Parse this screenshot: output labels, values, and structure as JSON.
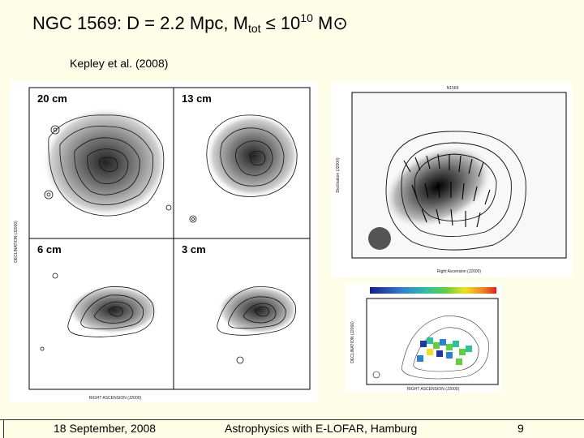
{
  "slide": {
    "title": {
      "prefix": "NGC 1569: D = 2.2 Mpc,  M",
      "sub": "tot",
      "relation": " ≤ 10",
      "exponent": "10",
      "unit": " M",
      "sun_symbol": "⊙"
    },
    "citation": "Kepley et al.  (2008)",
    "footer": {
      "date": "18 September, 2008",
      "event": "Astrophysics with E-LOFAR, Hamburg",
      "page": "9"
    }
  },
  "figures": {
    "continuum_maps": {
      "panels": [
        {
          "label": "20 cm"
        },
        {
          "label": "13 cm"
        },
        {
          "label": "6 cm"
        },
        {
          "label": "3 cm"
        }
      ],
      "axis_y": "DECLINATION (J2000)",
      "axis_x": "RIGHT ASCENSION (J2000)"
    },
    "polarization_map": {
      "header": "N1569",
      "axis_y": "Declination (J2000)",
      "axis_x": "Right Ascension (J2000)"
    },
    "rotation_measure_map": {
      "axis_y": "DECLINATION (J2000)",
      "axis_x": "RIGHT ASCENSION (J2000)"
    }
  },
  "colors": {
    "background": "#fdfde8",
    "text": "#000000"
  }
}
